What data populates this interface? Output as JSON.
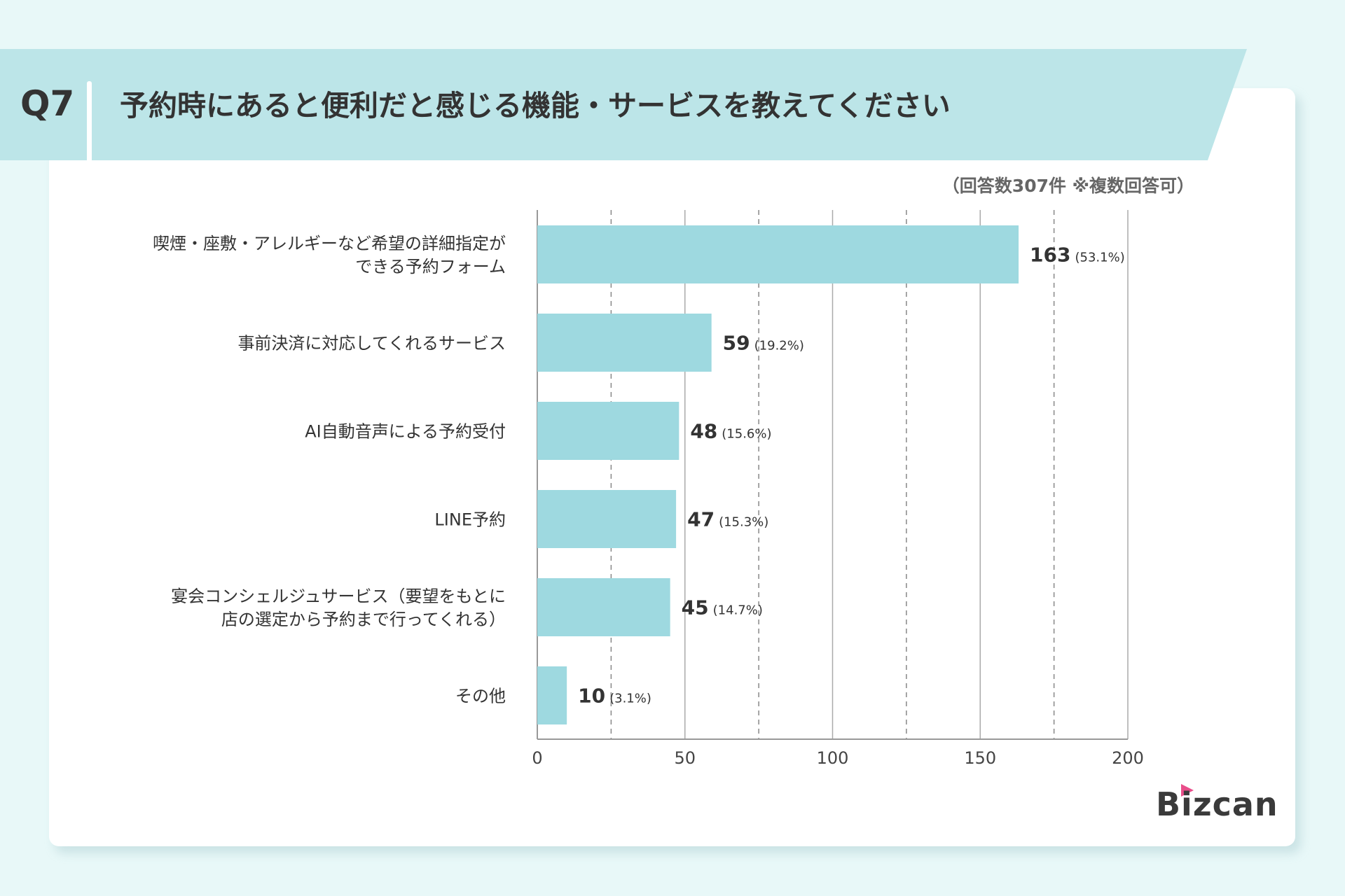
{
  "header": {
    "question_no": "Q7",
    "title": "予約時にあると便利だと感じる機能・サービスを教えてください"
  },
  "note": "（回答数307件 ※複数回答可）",
  "logo": "Bizcan",
  "colors": {
    "bar": "#9ed9e0",
    "band": "#bce5e8",
    "background": "#e8f8f8"
  },
  "chart_data": {
    "type": "bar",
    "orientation": "horizontal",
    "categories": [
      [
        "喫煙・座敷・アレルギーなど希望の詳細指定が",
        "できる予約フォーム"
      ],
      [
        "事前決済に対応してくれるサービス"
      ],
      [
        "AI自動音声による予約受付"
      ],
      [
        "LINE予約"
      ],
      [
        "宴会コンシェルジュサービス（要望をもとに",
        "店の選定から予約まで行ってくれる）"
      ],
      [
        "その他"
      ]
    ],
    "values": [
      163,
      59,
      48,
      47,
      45,
      10
    ],
    "percent_labels": [
      "(53.1%)",
      "(19.2%)",
      "(15.6%)",
      "(15.3%)",
      "(14.7%)",
      "(3.1%)"
    ],
    "xlim": [
      0,
      200
    ],
    "xticks": [
      0,
      50,
      100,
      150,
      200
    ],
    "minor_gridlines": [
      25,
      75,
      125,
      175
    ],
    "grid": true
  }
}
